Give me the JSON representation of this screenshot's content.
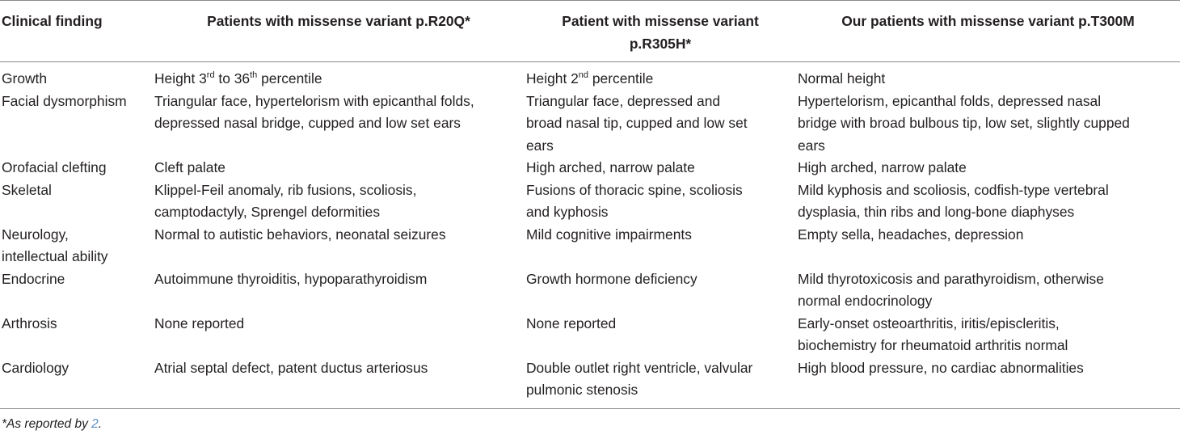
{
  "headers": {
    "col1": "Clinical finding",
    "col2": "Patients with missense variant p.R20Q*",
    "col3_line1": "Patient with missense variant",
    "col3_line2": "p.R305H*",
    "col4": "Our patients with missense variant p.T300M"
  },
  "rows": {
    "growth": {
      "finding": "Growth",
      "r20q_pre": "Height 3",
      "r20q_sup1": "rd",
      "r20q_mid": " to 36",
      "r20q_sup2": "th",
      "r20q_post": " percentile",
      "r305h_pre": "Height 2",
      "r305h_sup": "nd",
      "r305h_post": " percentile",
      "t300m": "Normal height"
    },
    "facial": {
      "finding": "Facial dysmorphism",
      "r20q_l1": "Triangular face, hypertelorism with epicanthal folds,",
      "r20q_l2": "depressed nasal bridge, cupped and low set ears",
      "r305h_l1": "Triangular face, depressed and",
      "r305h_l2": "broad nasal tip, cupped and low set",
      "r305h_l3": "ears",
      "t300m_l1": "Hypertelorism, epicanthal folds, depressed nasal",
      "t300m_l2": "bridge with broad bulbous tip, low set, slightly cupped",
      "t300m_l3": "ears"
    },
    "orofacial": {
      "finding": "Orofacial clefting",
      "r20q": "Cleft palate",
      "r305h": "High arched, narrow palate",
      "t300m": "High arched, narrow palate"
    },
    "skeletal": {
      "finding": "Skeletal",
      "r20q_l1": "Klippel-Feil anomaly, rib fusions, scoliosis,",
      "r20q_l2": "camptodactyly, Sprengel deformities",
      "r305h_l1": "Fusions of thoracic spine, scoliosis",
      "r305h_l2": "and kyphosis",
      "t300m_l1": "Mild kyphosis and scoliosis, codfish-type vertebral",
      "t300m_l2": "dysplasia, thin ribs and long-bone diaphyses"
    },
    "neurology": {
      "finding_l1": "Neurology,",
      "finding_l2": "intellectual ability",
      "r20q": "Normal to autistic behaviors, neonatal seizures",
      "r305h": "Mild cognitive impairments",
      "t300m": "Empty sella, headaches, depression"
    },
    "endocrine": {
      "finding": "Endocrine",
      "r20q": "Autoimmune thyroiditis, hypoparathyroidism",
      "r305h": "Growth hormone deficiency",
      "t300m_l1": "Mild thyrotoxicosis and parathyroidism, otherwise",
      "t300m_l2": "normal endocrinology"
    },
    "arthrosis": {
      "finding": "Arthrosis",
      "r20q": "None reported",
      "r305h": "None reported",
      "t300m_l1": "Early-onset osteoarthritis, iritis/episcleritis,",
      "t300m_l2": "biochemistry for rheumatoid arthritis normal"
    },
    "cardiology": {
      "finding": "Cardiology",
      "r20q": "Atrial septal defect, patent ductus arteriosus",
      "r305h_l1": "Double outlet right ventricle, valvular",
      "r305h_l2": "pulmonic stenosis",
      "t300m": "High blood pressure, no cardiac abnormalities"
    }
  },
  "footnote": {
    "text": "*As reported by ",
    "ref": "2",
    "end": "."
  }
}
